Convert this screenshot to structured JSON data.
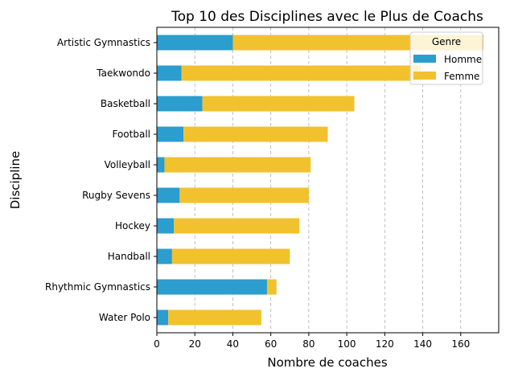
{
  "chart_data": {
    "type": "bar",
    "orientation": "horizontal",
    "stacked": true,
    "title": "Top 10 des Disciplines avec le Plus de Coachs",
    "xlabel": "Nombre de coaches",
    "ylabel": "Discipline",
    "xlim": [
      0,
      180
    ],
    "xticks": [
      0,
      20,
      40,
      60,
      80,
      100,
      120,
      140,
      160
    ],
    "grid": "x-dashed",
    "categories": [
      "Artistic Gymnastics",
      "Taekwondo",
      "Basketball",
      "Football",
      "Volleyball",
      "Rugby Sevens",
      "Hockey",
      "Handball",
      "Rhythmic Gymnastics",
      "Water Polo"
    ],
    "series": [
      {
        "name": "Homme",
        "color": "#2b9dce",
        "values": [
          40,
          13,
          24,
          14,
          4,
          12,
          9,
          8,
          58,
          6
        ]
      },
      {
        "name": "Femme",
        "color": "#f2c12e",
        "values": [
          132,
          126,
          80,
          76,
          77,
          68,
          66,
          62,
          5,
          49
        ]
      }
    ],
    "legend": {
      "title": "Genre",
      "placement": "top-right"
    }
  }
}
